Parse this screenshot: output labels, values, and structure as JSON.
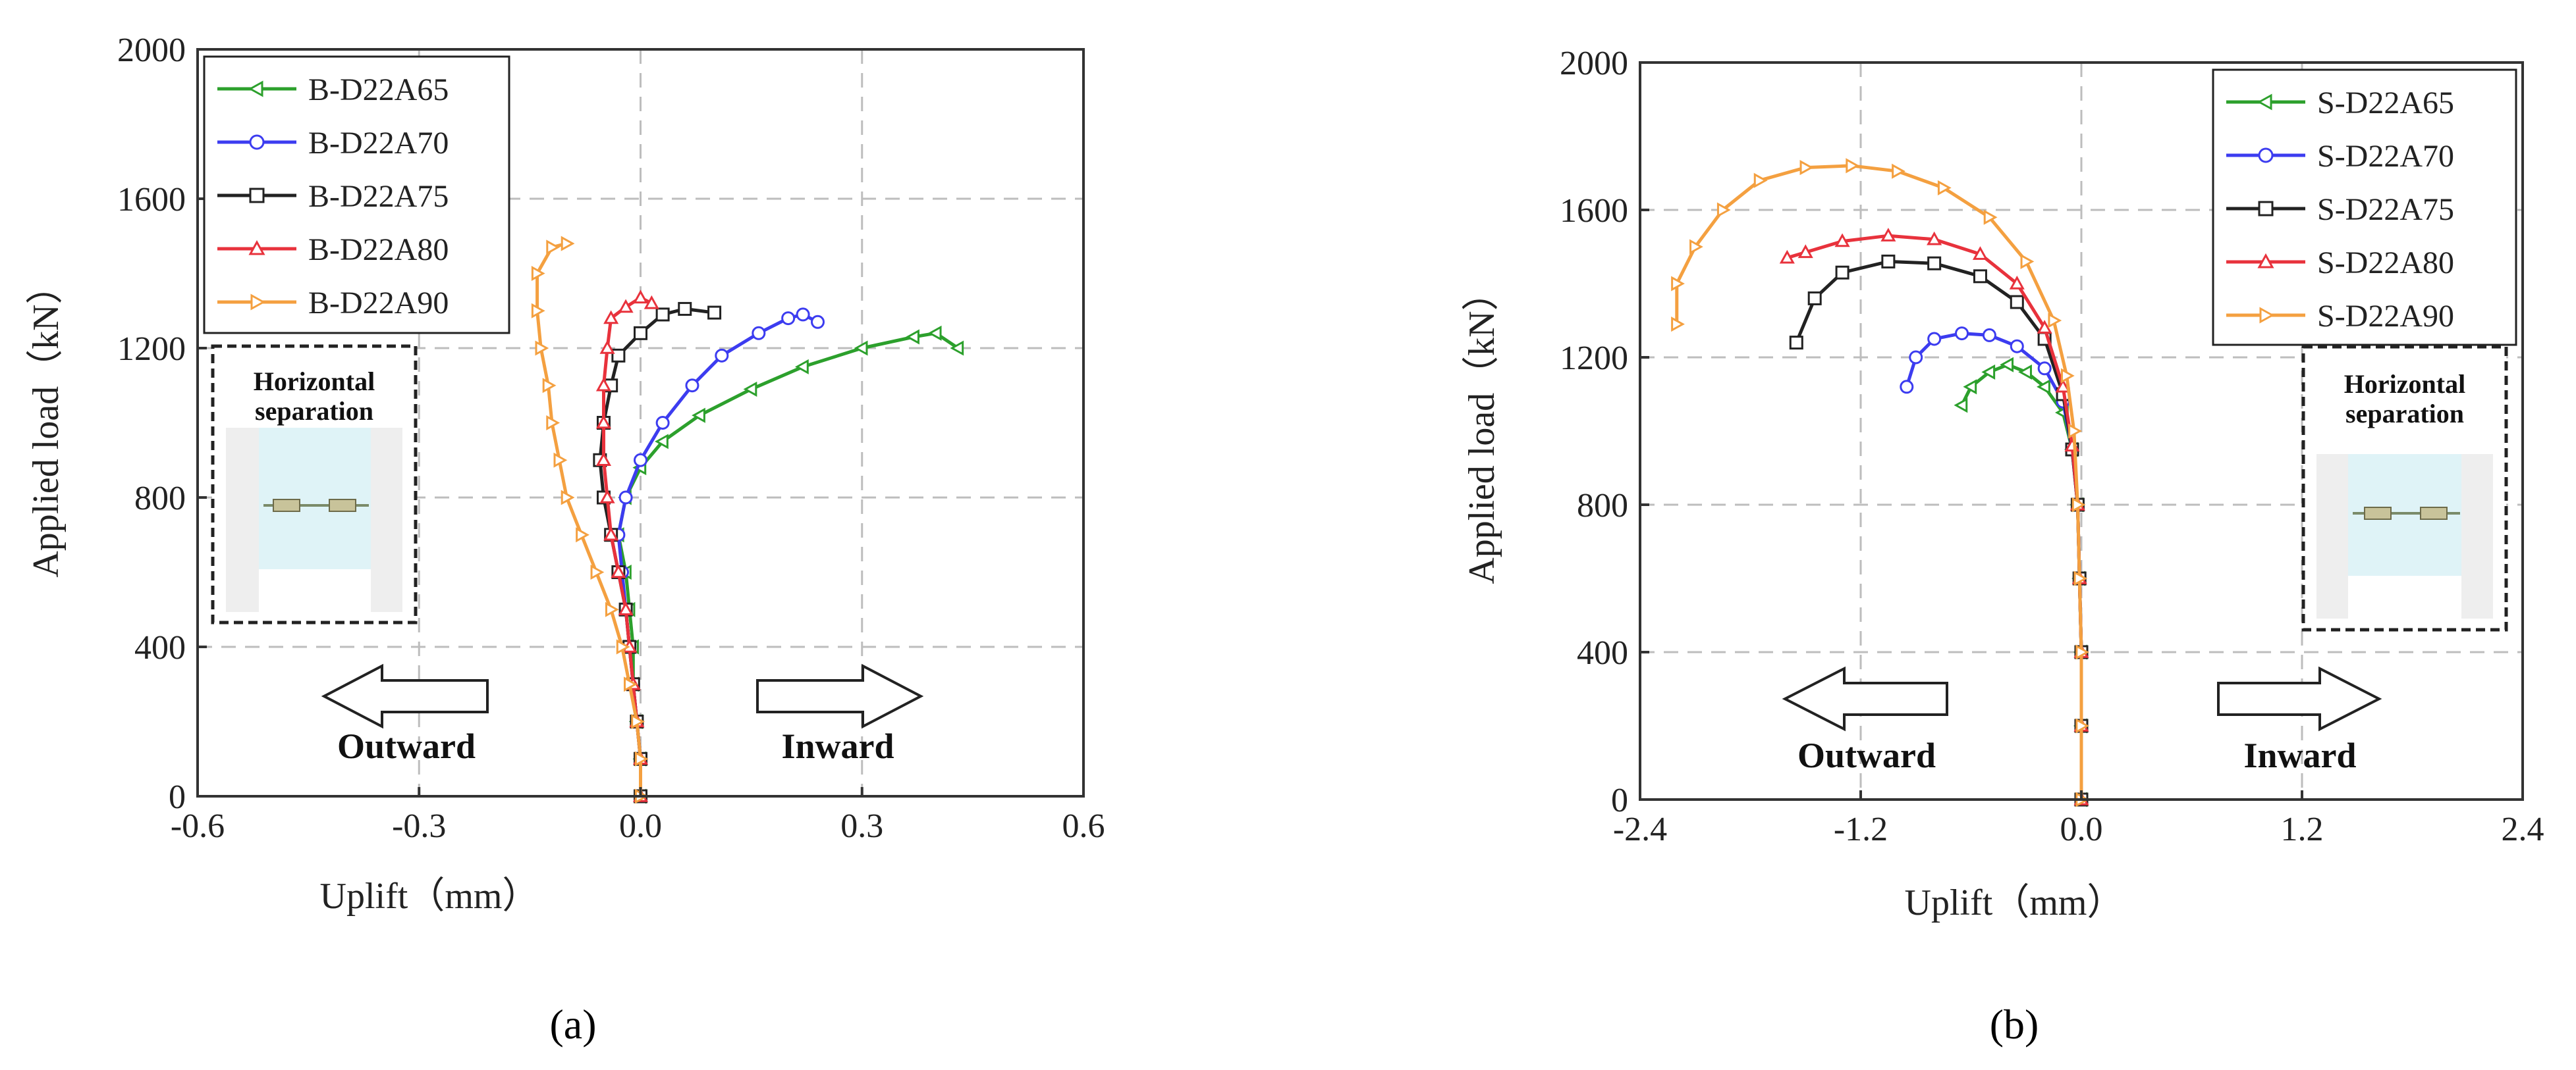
{
  "chart_data": [
    {
      "id": "a",
      "type": "line",
      "title": "",
      "xlabel": "Uplift（mm）",
      "ylabel": "Applied load（kN）",
      "xlim": [
        -0.6,
        0.6
      ],
      "ylim": [
        0,
        2000
      ],
      "xticks": [
        "-0.6",
        "-0.3",
        "0.0",
        "0.3",
        "0.6"
      ],
      "yticks": [
        "0",
        "400",
        "800",
        "1200",
        "1600",
        "2000"
      ],
      "xtick_values": [
        -0.6,
        -0.3,
        0.0,
        0.3,
        0.6
      ],
      "ytick_values": [
        0,
        400,
        800,
        1200,
        1600,
        2000
      ],
      "grid": true,
      "legend_position": "top-left",
      "caption": "(a)",
      "inset": {
        "title_line1": "Horizontal",
        "title_line2": "separation",
        "position": "left"
      },
      "arrows": {
        "left_label": "Outward",
        "right_label": "Inward"
      },
      "series": [
        {
          "name": "B-D22A65",
          "color": "#2ca02c",
          "marker": "triangle-left",
          "points": [
            [
              0.0,
              0
            ],
            [
              0.0,
              100
            ],
            [
              -0.005,
              200
            ],
            [
              -0.01,
              300
            ],
            [
              -0.01,
              400
            ],
            [
              -0.015,
              500
            ],
            [
              -0.02,
              600
            ],
            [
              -0.03,
              700
            ],
            [
              -0.02,
              800
            ],
            [
              0.0,
              880
            ],
            [
              0.03,
              950
            ],
            [
              0.08,
              1020
            ],
            [
              0.15,
              1090
            ],
            [
              0.22,
              1150
            ],
            [
              0.3,
              1200
            ],
            [
              0.37,
              1230
            ],
            [
              0.4,
              1240
            ],
            [
              0.43,
              1200
            ]
          ]
        },
        {
          "name": "B-D22A70",
          "color": "#3c3cf0",
          "marker": "circle",
          "points": [
            [
              0.0,
              0
            ],
            [
              0.0,
              100
            ],
            [
              -0.005,
              200
            ],
            [
              -0.01,
              300
            ],
            [
              -0.015,
              400
            ],
            [
              -0.02,
              500
            ],
            [
              -0.025,
              600
            ],
            [
              -0.03,
              700
            ],
            [
              -0.02,
              800
            ],
            [
              0.0,
              900
            ],
            [
              0.03,
              1000
            ],
            [
              0.07,
              1100
            ],
            [
              0.11,
              1180
            ],
            [
              0.16,
              1240
            ],
            [
              0.2,
              1280
            ],
            [
              0.22,
              1290
            ],
            [
              0.24,
              1270
            ]
          ]
        },
        {
          "name": "B-D22A75",
          "color": "#222222",
          "marker": "square",
          "points": [
            [
              0.0,
              0
            ],
            [
              0.0,
              100
            ],
            [
              -0.005,
              200
            ],
            [
              -0.01,
              300
            ],
            [
              -0.015,
              400
            ],
            [
              -0.02,
              500
            ],
            [
              -0.03,
              600
            ],
            [
              -0.04,
              700
            ],
            [
              -0.05,
              800
            ],
            [
              -0.055,
              900
            ],
            [
              -0.05,
              1000
            ],
            [
              -0.04,
              1100
            ],
            [
              -0.03,
              1180
            ],
            [
              0.0,
              1240
            ],
            [
              0.03,
              1290
            ],
            [
              0.06,
              1305
            ],
            [
              0.1,
              1295
            ]
          ]
        },
        {
          "name": "B-D22A80",
          "color": "#e8323c",
          "marker": "triangle-up",
          "points": [
            [
              0.0,
              0
            ],
            [
              0.0,
              100
            ],
            [
              -0.005,
              200
            ],
            [
              -0.01,
              300
            ],
            [
              -0.015,
              400
            ],
            [
              -0.02,
              500
            ],
            [
              -0.03,
              600
            ],
            [
              -0.04,
              700
            ],
            [
              -0.045,
              800
            ],
            [
              -0.05,
              900
            ],
            [
              -0.05,
              1000
            ],
            [
              -0.05,
              1100
            ],
            [
              -0.045,
              1200
            ],
            [
              -0.04,
              1280
            ],
            [
              -0.02,
              1310
            ],
            [
              0.0,
              1335
            ],
            [
              0.015,
              1320
            ]
          ]
        },
        {
          "name": "B-D22A90",
          "color": "#f4a040",
          "marker": "triangle-right",
          "points": [
            [
              0.0,
              0
            ],
            [
              0.0,
              100
            ],
            [
              -0.005,
              200
            ],
            [
              -0.015,
              300
            ],
            [
              -0.025,
              400
            ],
            [
              -0.04,
              500
            ],
            [
              -0.06,
              600
            ],
            [
              -0.08,
              700
            ],
            [
              -0.1,
              800
            ],
            [
              -0.11,
              900
            ],
            [
              -0.12,
              1000
            ],
            [
              -0.125,
              1100
            ],
            [
              -0.135,
              1200
            ],
            [
              -0.14,
              1300
            ],
            [
              -0.14,
              1400
            ],
            [
              -0.12,
              1470
            ],
            [
              -0.1,
              1480
            ]
          ]
        }
      ]
    },
    {
      "id": "b",
      "type": "line",
      "title": "",
      "xlabel": "Uplift（mm）",
      "ylabel": "Applied load（kN）",
      "xlim": [
        -2.4,
        2.4
      ],
      "ylim": [
        0,
        2000
      ],
      "xticks": [
        "-2.4",
        "-1.2",
        "0.0",
        "1.2",
        "2.4"
      ],
      "yticks": [
        "0",
        "400",
        "800",
        "1200",
        "1600",
        "2000"
      ],
      "xtick_values": [
        -2.4,
        -1.2,
        0.0,
        1.2,
        2.4
      ],
      "ytick_values": [
        0,
        400,
        800,
        1200,
        1600,
        2000
      ],
      "grid": true,
      "legend_position": "top-right",
      "caption": "(b)",
      "inset": {
        "title_line1": "Horizontal",
        "title_line2": "separation",
        "position": "right"
      },
      "arrows": {
        "left_label": "Outward",
        "right_label": "Inward"
      },
      "series": [
        {
          "name": "S-D22A65",
          "color": "#2ca02c",
          "marker": "triangle-left",
          "points": [
            [
              0.0,
              0
            ],
            [
              0.0,
              200
            ],
            [
              0.0,
              400
            ],
            [
              -0.01,
              600
            ],
            [
              -0.02,
              800
            ],
            [
              -0.05,
              950
            ],
            [
              -0.1,
              1050
            ],
            [
              -0.2,
              1120
            ],
            [
              -0.3,
              1160
            ],
            [
              -0.4,
              1180
            ],
            [
              -0.5,
              1160
            ],
            [
              -0.6,
              1120
            ],
            [
              -0.65,
              1070
            ]
          ]
        },
        {
          "name": "S-D22A70",
          "color": "#3c3cf0",
          "marker": "circle",
          "points": [
            [
              0.0,
              0
            ],
            [
              0.0,
              200
            ],
            [
              0.0,
              400
            ],
            [
              -0.01,
              600
            ],
            [
              -0.02,
              800
            ],
            [
              -0.05,
              950
            ],
            [
              -0.1,
              1080
            ],
            [
              -0.2,
              1170
            ],
            [
              -0.35,
              1230
            ],
            [
              -0.5,
              1260
            ],
            [
              -0.65,
              1265
            ],
            [
              -0.8,
              1250
            ],
            [
              -0.9,
              1200
            ],
            [
              -0.95,
              1120
            ]
          ]
        },
        {
          "name": "S-D22A75",
          "color": "#222222",
          "marker": "square",
          "points": [
            [
              0.0,
              0
            ],
            [
              0.0,
              200
            ],
            [
              0.0,
              400
            ],
            [
              -0.01,
              600
            ],
            [
              -0.02,
              800
            ],
            [
              -0.05,
              950
            ],
            [
              -0.1,
              1100
            ],
            [
              -0.2,
              1250
            ],
            [
              -0.35,
              1350
            ],
            [
              -0.55,
              1420
            ],
            [
              -0.8,
              1455
            ],
            [
              -1.05,
              1460
            ],
            [
              -1.3,
              1430
            ],
            [
              -1.45,
              1360
            ],
            [
              -1.55,
              1240
            ]
          ]
        },
        {
          "name": "S-D22A80",
          "color": "#e8323c",
          "marker": "triangle-up",
          "points": [
            [
              0.0,
              0
            ],
            [
              0.0,
              200
            ],
            [
              0.0,
              400
            ],
            [
              -0.01,
              600
            ],
            [
              -0.02,
              800
            ],
            [
              -0.05,
              960
            ],
            [
              -0.1,
              1120
            ],
            [
              -0.2,
              1280
            ],
            [
              -0.35,
              1400
            ],
            [
              -0.55,
              1480
            ],
            [
              -0.8,
              1520
            ],
            [
              -1.05,
              1530
            ],
            [
              -1.3,
              1515
            ],
            [
              -1.5,
              1485
            ],
            [
              -1.6,
              1470
            ]
          ]
        },
        {
          "name": "S-D22A90",
          "color": "#f4a040",
          "marker": "triangle-right",
          "points": [
            [
              0.0,
              0
            ],
            [
              0.0,
              200
            ],
            [
              0.0,
              400
            ],
            [
              -0.01,
              600
            ],
            [
              -0.02,
              800
            ],
            [
              -0.04,
              1000
            ],
            [
              -0.08,
              1150
            ],
            [
              -0.15,
              1300
            ],
            [
              -0.3,
              1460
            ],
            [
              -0.5,
              1580
            ],
            [
              -0.75,
              1660
            ],
            [
              -1.0,
              1705
            ],
            [
              -1.25,
              1720
            ],
            [
              -1.5,
              1715
            ],
            [
              -1.75,
              1680
            ],
            [
              -1.95,
              1600
            ],
            [
              -2.1,
              1500
            ],
            [
              -2.2,
              1400
            ],
            [
              -2.2,
              1290
            ]
          ]
        }
      ]
    }
  ]
}
